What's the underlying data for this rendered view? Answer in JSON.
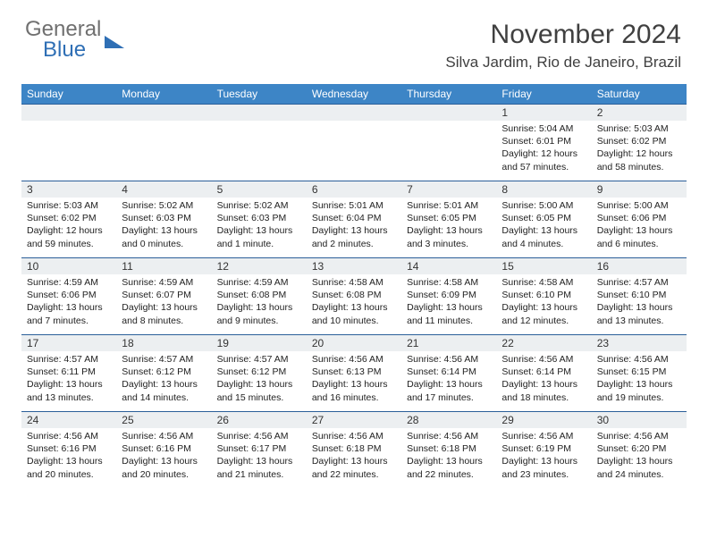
{
  "logo": {
    "line1": "General",
    "line2": "Blue"
  },
  "title": "November 2024",
  "location": "Silva Jardim, Rio de Janeiro, Brazil",
  "colors": {
    "header_bg": "#3d85c6",
    "header_text": "#ffffff",
    "daynum_bg": "#eceff1",
    "cell_border": "#2b5f99",
    "logo_gray": "#707070",
    "logo_blue": "#2f6fb5",
    "text": "#333333"
  },
  "day_headers": [
    "Sunday",
    "Monday",
    "Tuesday",
    "Wednesday",
    "Thursday",
    "Friday",
    "Saturday"
  ],
  "weeks": [
    [
      {
        "n": "",
        "lines": []
      },
      {
        "n": "",
        "lines": []
      },
      {
        "n": "",
        "lines": []
      },
      {
        "n": "",
        "lines": []
      },
      {
        "n": "",
        "lines": []
      },
      {
        "n": "1",
        "lines": [
          "Sunrise: 5:04 AM",
          "Sunset: 6:01 PM",
          "Daylight: 12 hours and 57 minutes."
        ]
      },
      {
        "n": "2",
        "lines": [
          "Sunrise: 5:03 AM",
          "Sunset: 6:02 PM",
          "Daylight: 12 hours and 58 minutes."
        ]
      }
    ],
    [
      {
        "n": "3",
        "lines": [
          "Sunrise: 5:03 AM",
          "Sunset: 6:02 PM",
          "Daylight: 12 hours and 59 minutes."
        ]
      },
      {
        "n": "4",
        "lines": [
          "Sunrise: 5:02 AM",
          "Sunset: 6:03 PM",
          "Daylight: 13 hours and 0 minutes."
        ]
      },
      {
        "n": "5",
        "lines": [
          "Sunrise: 5:02 AM",
          "Sunset: 6:03 PM",
          "Daylight: 13 hours and 1 minute."
        ]
      },
      {
        "n": "6",
        "lines": [
          "Sunrise: 5:01 AM",
          "Sunset: 6:04 PM",
          "Daylight: 13 hours and 2 minutes."
        ]
      },
      {
        "n": "7",
        "lines": [
          "Sunrise: 5:01 AM",
          "Sunset: 6:05 PM",
          "Daylight: 13 hours and 3 minutes."
        ]
      },
      {
        "n": "8",
        "lines": [
          "Sunrise: 5:00 AM",
          "Sunset: 6:05 PM",
          "Daylight: 13 hours and 4 minutes."
        ]
      },
      {
        "n": "9",
        "lines": [
          "Sunrise: 5:00 AM",
          "Sunset: 6:06 PM",
          "Daylight: 13 hours and 6 minutes."
        ]
      }
    ],
    [
      {
        "n": "10",
        "lines": [
          "Sunrise: 4:59 AM",
          "Sunset: 6:06 PM",
          "Daylight: 13 hours and 7 minutes."
        ]
      },
      {
        "n": "11",
        "lines": [
          "Sunrise: 4:59 AM",
          "Sunset: 6:07 PM",
          "Daylight: 13 hours and 8 minutes."
        ]
      },
      {
        "n": "12",
        "lines": [
          "Sunrise: 4:59 AM",
          "Sunset: 6:08 PM",
          "Daylight: 13 hours and 9 minutes."
        ]
      },
      {
        "n": "13",
        "lines": [
          "Sunrise: 4:58 AM",
          "Sunset: 6:08 PM",
          "Daylight: 13 hours and 10 minutes."
        ]
      },
      {
        "n": "14",
        "lines": [
          "Sunrise: 4:58 AM",
          "Sunset: 6:09 PM",
          "Daylight: 13 hours and 11 minutes."
        ]
      },
      {
        "n": "15",
        "lines": [
          "Sunrise: 4:58 AM",
          "Sunset: 6:10 PM",
          "Daylight: 13 hours and 12 minutes."
        ]
      },
      {
        "n": "16",
        "lines": [
          "Sunrise: 4:57 AM",
          "Sunset: 6:10 PM",
          "Daylight: 13 hours and 13 minutes."
        ]
      }
    ],
    [
      {
        "n": "17",
        "lines": [
          "Sunrise: 4:57 AM",
          "Sunset: 6:11 PM",
          "Daylight: 13 hours and 13 minutes."
        ]
      },
      {
        "n": "18",
        "lines": [
          "Sunrise: 4:57 AM",
          "Sunset: 6:12 PM",
          "Daylight: 13 hours and 14 minutes."
        ]
      },
      {
        "n": "19",
        "lines": [
          "Sunrise: 4:57 AM",
          "Sunset: 6:12 PM",
          "Daylight: 13 hours and 15 minutes."
        ]
      },
      {
        "n": "20",
        "lines": [
          "Sunrise: 4:56 AM",
          "Sunset: 6:13 PM",
          "Daylight: 13 hours and 16 minutes."
        ]
      },
      {
        "n": "21",
        "lines": [
          "Sunrise: 4:56 AM",
          "Sunset: 6:14 PM",
          "Daylight: 13 hours and 17 minutes."
        ]
      },
      {
        "n": "22",
        "lines": [
          "Sunrise: 4:56 AM",
          "Sunset: 6:14 PM",
          "Daylight: 13 hours and 18 minutes."
        ]
      },
      {
        "n": "23",
        "lines": [
          "Sunrise: 4:56 AM",
          "Sunset: 6:15 PM",
          "Daylight: 13 hours and 19 minutes."
        ]
      }
    ],
    [
      {
        "n": "24",
        "lines": [
          "Sunrise: 4:56 AM",
          "Sunset: 6:16 PM",
          "Daylight: 13 hours and 20 minutes."
        ]
      },
      {
        "n": "25",
        "lines": [
          "Sunrise: 4:56 AM",
          "Sunset: 6:16 PM",
          "Daylight: 13 hours and 20 minutes."
        ]
      },
      {
        "n": "26",
        "lines": [
          "Sunrise: 4:56 AM",
          "Sunset: 6:17 PM",
          "Daylight: 13 hours and 21 minutes."
        ]
      },
      {
        "n": "27",
        "lines": [
          "Sunrise: 4:56 AM",
          "Sunset: 6:18 PM",
          "Daylight: 13 hours and 22 minutes."
        ]
      },
      {
        "n": "28",
        "lines": [
          "Sunrise: 4:56 AM",
          "Sunset: 6:18 PM",
          "Daylight: 13 hours and 22 minutes."
        ]
      },
      {
        "n": "29",
        "lines": [
          "Sunrise: 4:56 AM",
          "Sunset: 6:19 PM",
          "Daylight: 13 hours and 23 minutes."
        ]
      },
      {
        "n": "30",
        "lines": [
          "Sunrise: 4:56 AM",
          "Sunset: 6:20 PM",
          "Daylight: 13 hours and 24 minutes."
        ]
      }
    ]
  ]
}
